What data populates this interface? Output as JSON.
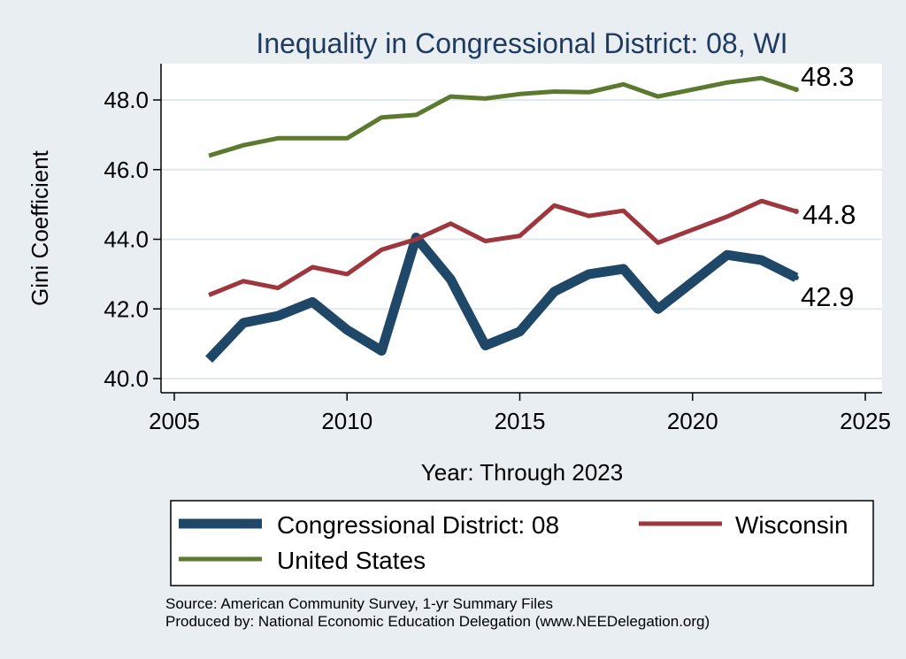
{
  "chart_data": {
    "type": "line",
    "title": "Inequality in Congressional District:  08, WI",
    "xlabel": "Year: Through 2023",
    "ylabel": "Gini Coefficient",
    "xlim": [
      2005,
      2025
    ],
    "ylim": [
      40,
      48.6
    ],
    "x_ticks": [
      2005,
      2010,
      2015,
      2020,
      2025
    ],
    "x_tick_labels": [
      "2005",
      "2010",
      "2015",
      "2020",
      "2025"
    ],
    "y_ticks": [
      40,
      42,
      44,
      46,
      48
    ],
    "y_tick_labels": [
      "40.0",
      "42.0",
      "44.0",
      "46.0",
      "48.0"
    ],
    "series": [
      {
        "name": "Congressional District:  08",
        "color": "#1f4868",
        "x": [
          2006,
          2007,
          2008,
          2009,
          2010,
          2011,
          2012,
          2013,
          2014,
          2015,
          2016,
          2017,
          2018,
          2019,
          2021,
          2022,
          2023
        ],
        "values": [
          40.55,
          41.6,
          41.8,
          42.2,
          41.4,
          40.8,
          44.05,
          42.85,
          40.95,
          41.35,
          42.5,
          43.0,
          43.15,
          42.0,
          43.55,
          43.4,
          42.9
        ],
        "end_label": "42.9"
      },
      {
        "name": "Wisconsin",
        "color": "#9e363e",
        "x": [
          2006,
          2007,
          2008,
          2009,
          2010,
          2011,
          2012,
          2013,
          2014,
          2015,
          2016,
          2017,
          2018,
          2019,
          2021,
          2022,
          2023
        ],
        "values": [
          42.4,
          42.8,
          42.6,
          43.2,
          43.0,
          43.7,
          44.0,
          44.45,
          43.95,
          44.1,
          44.97,
          44.67,
          44.82,
          43.9,
          44.65,
          45.1,
          44.8
        ],
        "end_label": "44.8"
      },
      {
        "name": "United States",
        "color": "#5b7a2f",
        "x": [
          2006,
          2007,
          2008,
          2009,
          2010,
          2011,
          2012,
          2013,
          2014,
          2015,
          2016,
          2017,
          2018,
          2019,
          2021,
          2022,
          2023
        ],
        "values": [
          46.4,
          46.7,
          46.9,
          46.9,
          46.9,
          47.5,
          47.57,
          48.1,
          48.04,
          48.17,
          48.24,
          48.22,
          48.45,
          48.1,
          48.5,
          48.63,
          48.3
        ],
        "end_label": "48.3"
      }
    ],
    "legend_position": "bottom",
    "source_lines": [
      "Source: American Community Survey, 1-yr Summary Files",
      "Produced by: National Economic Education Delegation (www.NEEDelegation.org)"
    ]
  }
}
